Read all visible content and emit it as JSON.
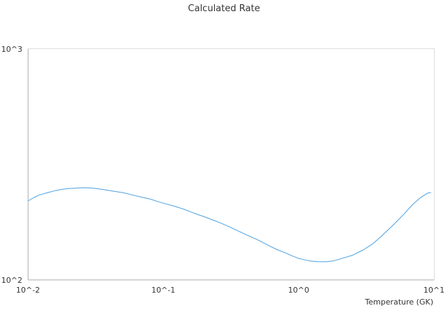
{
  "chart_data": {
    "type": "line",
    "title": "Calculated Rate",
    "xlabel": "Temperature (GK)",
    "ylabel": "",
    "x_scale": "log",
    "y_scale": "log",
    "xlim": [
      0.01,
      10
    ],
    "ylim": [
      100,
      1000
    ],
    "x_ticks": [
      "10^-2",
      "10^-1",
      "10^0",
      "10^1"
    ],
    "y_ticks": [
      "10^3",
      "10^2"
    ],
    "grid": false,
    "legend": "none",
    "series": [
      {
        "color": "#4a9fe0",
        "x": [
          0.01,
          0.011,
          0.012,
          0.014,
          0.016,
          0.018,
          0.02,
          0.023,
          0.026,
          0.03,
          0.035,
          0.04,
          0.05,
          0.06,
          0.07,
          0.08,
          0.09,
          0.1,
          0.12,
          0.14,
          0.16,
          0.18,
          0.2,
          0.25,
          0.3,
          0.35,
          0.4,
          0.5,
          0.6,
          0.7,
          0.8,
          0.9,
          1.0,
          1.2,
          1.4,
          1.6,
          1.8,
          2.0,
          2.5,
          3.0,
          3.5,
          4.0,
          5.0,
          6.0,
          7.0,
          8.0,
          9.0,
          9.5
        ],
        "values": [
          220,
          227,
          233,
          239,
          244,
          247,
          249,
          250,
          251,
          250,
          247,
          244,
          239,
          233,
          228,
          224,
          219,
          215,
          209,
          203,
          197,
          192,
          188,
          179,
          171,
          164,
          158,
          149,
          141,
          135,
          131,
          127,
          124,
          121,
          120,
          120,
          121,
          123,
          128,
          135,
          143,
          153,
          173,
          193,
          213,
          228,
          238,
          239
        ]
      }
    ]
  }
}
